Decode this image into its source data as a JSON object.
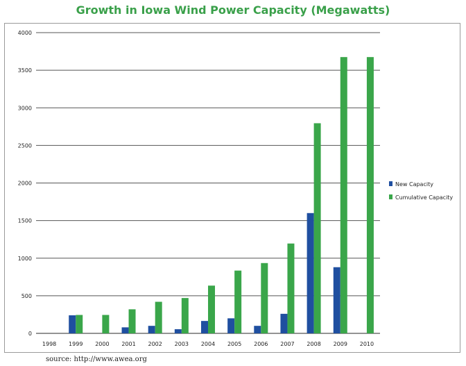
{
  "title": "Growth in Iowa Wind Power Capacity (Megawatts)",
  "source": "source: http://www.awea.org",
  "colors": {
    "new": "#1f4fa0",
    "cumulative": "#3aa64a",
    "title": "#3aa04a",
    "grid": "#555555"
  },
  "chart_data": {
    "type": "bar",
    "title": "Growth in Iowa Wind Power Capacity (Megawatts)",
    "xlabel": "",
    "ylabel": "",
    "ylim": [
      0,
      4000
    ],
    "yticks": [
      0,
      500,
      1000,
      1500,
      2000,
      2500,
      3000,
      3500,
      4000
    ],
    "grid": true,
    "legend_position": "right",
    "categories": [
      "1998",
      "1999",
      "2000",
      "2001",
      "2002",
      "2003",
      "2004",
      "2005",
      "2006",
      "2007",
      "2008",
      "2009",
      "2010"
    ],
    "series": [
      {
        "name": "New Capacity",
        "values": [
          0,
          240,
          0,
          80,
          100,
          55,
          165,
          200,
          100,
          260,
          1600,
          880,
          0
        ]
      },
      {
        "name": "Cumulative Capacity",
        "values": [
          0,
          245,
          245,
          320,
          420,
          470,
          635,
          835,
          935,
          1195,
          2795,
          3675,
          3675
        ]
      }
    ]
  }
}
